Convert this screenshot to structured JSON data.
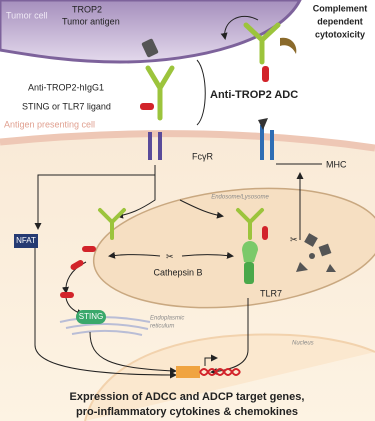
{
  "labels": {
    "tumor_cell": "Tumor cell",
    "trop2": [
      "TROP2",
      "Tumor antigen"
    ],
    "antibody": "Anti-TROP2-hIgG1",
    "ligand": "STING or TLR7 ligand",
    "adc": "Anti-TROP2 ADC",
    "complement": [
      "Complement",
      "dependent",
      "cytotoxicity"
    ],
    "apc": "Antigen presenting cell",
    "fcgr": "FcγR",
    "mhc": "MHC",
    "endosome": "Endosome/Lysosome",
    "nfat": "NFAT",
    "cathepsin": "Cathepsin B",
    "tlr7": "TLR7",
    "sting": "STING",
    "er": [
      "Endoplasmic",
      "reticulum"
    ],
    "nucleus": "Nucleus",
    "expression": [
      "Expression of ADCC and ADCP target genes,",
      "pro-inflammatory cytokines & chemokines"
    ]
  }
}
